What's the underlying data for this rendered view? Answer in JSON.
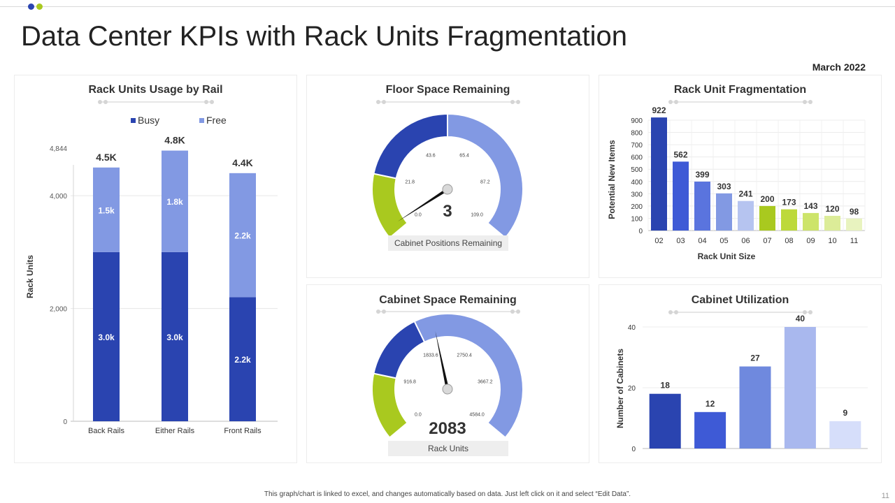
{
  "page": {
    "title": "Data Center KPIs with Rack Units Fragmentation",
    "date": "March 2022",
    "footer": "This graph/chart is linked to excel, and changes automatically based on data. Just left click on it and select “Edit Data”.",
    "page_number": "11",
    "colors": {
      "dark_blue": "#2a44b0",
      "mid_blue": "#3e5ad6",
      "light_blue": "#8299e3",
      "green": "#a9c91f"
    }
  },
  "chart_data": [
    {
      "id": "usage",
      "type": "bar",
      "stacked": true,
      "title": "Rack Units Usage by Rail",
      "ylabel": "Rack Units",
      "xlabel": "",
      "ylim": [
        0,
        4844
      ],
      "yticks": [
        "0",
        "2,000",
        "4,000",
        "4,844"
      ],
      "ytick_values": [
        0,
        2000,
        4000,
        4844
      ],
      "categories": [
        "Back Rails",
        "Either Rails",
        "Front Rails"
      ],
      "series": [
        {
          "name": "Busy",
          "values": [
            3000,
            3000,
            2200
          ],
          "labels": [
            "3.0k",
            "3.0k",
            "2.2k"
          ],
          "color": "#2a44b0"
        },
        {
          "name": "Free",
          "values": [
            1500,
            1800,
            2200
          ],
          "labels": [
            "1.5k",
            "1.8k",
            "2.2k"
          ],
          "color": "#8299e3"
        }
      ],
      "totals": [
        "4.5K",
        "4.8K",
        "4.4K"
      ],
      "legend": "top"
    },
    {
      "id": "floor",
      "type": "gauge",
      "title": "Floor Space Remaining",
      "min": 0,
      "max": 109,
      "value": 3,
      "value_label": "3",
      "caption": "Cabinet Positions Remaining",
      "ticks": [
        {
          "label": "0.0",
          "value": 0
        },
        {
          "label": "21.8",
          "value": 21.8
        },
        {
          "label": "43.6",
          "value": 43.6
        },
        {
          "label": "65.4",
          "value": 65.4
        },
        {
          "label": "87.2",
          "value": 87.2
        },
        {
          "label": "109.0",
          "value": 109
        }
      ],
      "bands": [
        {
          "from": 0,
          "to": 21.8,
          "color": "#a9c91f"
        },
        {
          "from": 21.8,
          "to": 54.5,
          "color": "#2a44b0"
        },
        {
          "from": 54.5,
          "to": 109,
          "color": "#8299e3"
        }
      ]
    },
    {
      "id": "cabinet",
      "type": "gauge",
      "title": "Cabinet Space Remaining",
      "min": 0,
      "max": 4584,
      "value": 2083,
      "value_label": "2083",
      "caption": "Rack Units",
      "ticks": [
        {
          "label": "0.0",
          "value": 0
        },
        {
          "label": "916.8",
          "value": 916.8
        },
        {
          "label": "1833.6",
          "value": 1833.6
        },
        {
          "label": "2750.4",
          "value": 2750.4
        },
        {
          "label": "3667.2",
          "value": 3667.2
        },
        {
          "label": "4584.0",
          "value": 4584
        }
      ],
      "bands": [
        {
          "from": 0,
          "to": 916.8,
          "color": "#a9c91f"
        },
        {
          "from": 916.8,
          "to": 1833.6,
          "color": "#2a44b0"
        },
        {
          "from": 1833.6,
          "to": 4584,
          "color": "#8299e3"
        }
      ]
    },
    {
      "id": "frag",
      "type": "bar",
      "title": "Rack Unit Fragmentation",
      "xlabel": "Rack Unit  Size",
      "ylabel": "Potential New Items",
      "ylim": [
        0,
        900
      ],
      "yticks": [
        "0",
        "100",
        "200",
        "300",
        "400",
        "500",
        "600",
        "700",
        "800",
        "900"
      ],
      "categories": [
        "02",
        "03",
        "04",
        "05",
        "06",
        "07",
        "08",
        "09",
        "10",
        "11"
      ],
      "values": [
        922,
        562,
        399,
        303,
        241,
        200,
        173,
        143,
        120,
        98
      ],
      "colors": [
        "#2a44b0",
        "#3e5ad6",
        "#5a74de",
        "#8299e3",
        "#b6c4f0",
        "#a9c91f",
        "#bdd93a",
        "#cde46a",
        "#dcec98",
        "#e8f3bf"
      ],
      "grid": true
    },
    {
      "id": "util",
      "type": "bar",
      "title": "Cabinet Utilization",
      "xlabel": "",
      "ylabel": "Number of Cabinets",
      "ylim": [
        0,
        40
      ],
      "yticks": [
        "0",
        "20",
        "40"
      ],
      "categories": [
        "",
        "",
        "",
        "",
        ""
      ],
      "values": [
        18,
        12,
        27,
        40,
        9
      ],
      "colors": [
        "#2a44b0",
        "#3e5ad6",
        "#6f89de",
        "#a9b8ee",
        "#d6defa"
      ],
      "grid": true
    }
  ]
}
